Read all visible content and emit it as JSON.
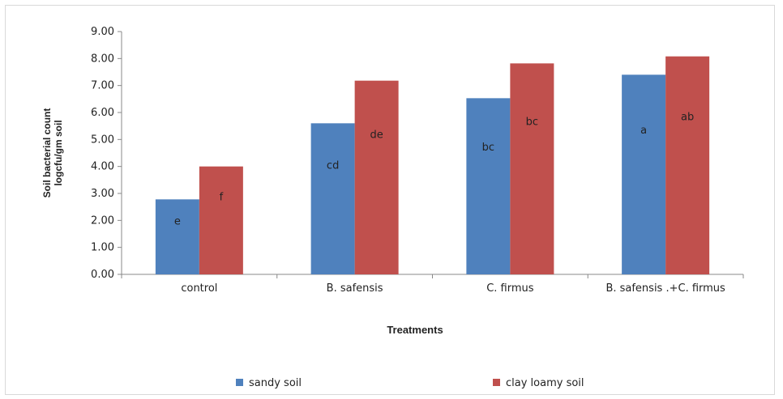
{
  "chart_data": {
    "type": "bar",
    "title": "",
    "xlabel": "Treatments",
    "ylabel_lines": [
      "Soil bacterial count",
      "logcfu/gm soil"
    ],
    "categories": [
      "control",
      "B. safensis",
      "C. firmus",
      "B. safensis .+C. firmus"
    ],
    "series": [
      {
        "name": "sandy soil",
        "color": "#4f81bd",
        "values": [
          2.78,
          5.6,
          6.53,
          7.4
        ],
        "letters": [
          "e",
          "cd",
          "bc",
          "a"
        ]
      },
      {
        "name": "clay loamy  soil",
        "color": "#c0504d",
        "values": [
          4.0,
          7.18,
          7.82,
          8.08
        ],
        "letters": [
          "f",
          "de",
          "bc",
          "ab"
        ]
      }
    ],
    "ylim": [
      0,
      9
    ],
    "yticks": [
      "0.00",
      "1.00",
      "2.00",
      "3.00",
      "4.00",
      "5.00",
      "6.00",
      "7.00",
      "8.00",
      "9.00"
    ],
    "grid": false,
    "legend_position": "bottom"
  }
}
